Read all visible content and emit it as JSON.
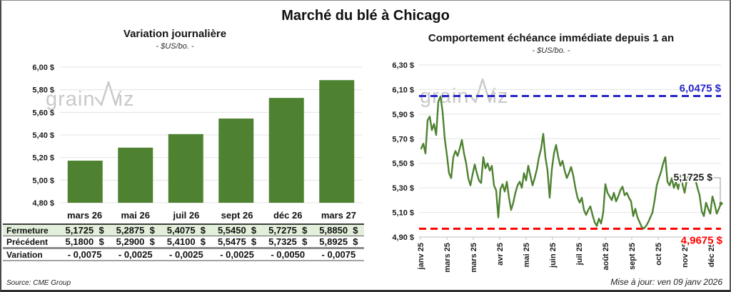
{
  "page": {
    "title": "Marché du blé à Chicago",
    "source_note": "Source: CME Group",
    "update_note": "Mise à jour: ven 09 janv 2026",
    "watermark": {
      "prefix": "grain",
      "suffix": "iz"
    }
  },
  "colors": {
    "green": "#4E8231",
    "row_green": "#E2EFDA",
    "blue": "#2525C8",
    "red": "#FF0000",
    "gridline": "#E3E3E3",
    "axis": "#BDBDBD",
    "leader": "#A9A9A9",
    "watermark": "#C9C9C9",
    "text": "#1A1A1A"
  },
  "chart_data": [
    {
      "type": "bar",
      "title": "Variation journalière",
      "subtitle": "- $US/bo. -",
      "categories": [
        "mars 26",
        "mai 26",
        "juil 26",
        "sept 26",
        "déc 26",
        "mars 27"
      ],
      "values": [
        5.1725,
        5.2875,
        5.4075,
        5.545,
        5.7275,
        5.885
      ],
      "ylim": [
        4.8,
        6.0
      ],
      "ytick_step": 0.2,
      "ytick_labels": [
        "6,00 $",
        "5,80 $",
        "5,60 $",
        "5,40 $",
        "5,20 $",
        "5,00 $",
        "4,80 $"
      ],
      "grid": true,
      "legend": "none"
    },
    {
      "type": "line",
      "title": "Comportement échéance immédiate depuis 1 an",
      "subtitle": "- $US/bo. -",
      "ylim": [
        4.9,
        6.3
      ],
      "ytick_step": 0.2,
      "ytick_labels": [
        "6,30 $",
        "6,10 $",
        "5,90 $",
        "5,70 $",
        "5,50 $",
        "5,30 $",
        "5,10 $",
        "4,90 $"
      ],
      "xtick_labels": [
        "janv 25",
        "mars 25",
        "mars 25",
        "avr 25",
        "mai 25",
        "juin 25",
        "juil 25",
        "août 25",
        "sept 25",
        "oct 25",
        "nov 25",
        "déc 25"
      ],
      "high_line": {
        "value": 6.0475,
        "label": "6,0475 $"
      },
      "low_line": {
        "value": 4.9675,
        "label": "4,9675 $"
      },
      "last_value": 5.1725,
      "last_value_label": "5,1725 $",
      "grid": true,
      "legend": "none",
      "values": [
        5.62,
        5.66,
        5.58,
        5.85,
        5.88,
        5.77,
        5.82,
        5.73,
        6.0,
        6.045,
        5.92,
        5.7,
        5.57,
        5.42,
        5.38,
        5.55,
        5.6,
        5.56,
        5.62,
        5.69,
        5.58,
        5.5,
        5.38,
        5.32,
        5.41,
        5.49,
        5.42,
        5.36,
        5.34,
        5.55,
        5.46,
        5.5,
        5.44,
        5.48,
        5.32,
        5.28,
        5.06,
        5.29,
        5.33,
        5.27,
        5.35,
        5.22,
        5.12,
        5.18,
        5.26,
        5.32,
        5.35,
        5.3,
        5.42,
        5.36,
        5.48,
        5.4,
        5.32,
        5.38,
        5.45,
        5.55,
        5.62,
        5.74,
        5.55,
        5.44,
        5.22,
        5.45,
        5.58,
        5.65,
        5.55,
        5.48,
        5.52,
        5.44,
        5.38,
        5.42,
        5.47,
        5.4,
        5.3,
        5.22,
        5.18,
        5.22,
        5.12,
        5.08,
        5.12,
        5.15,
        5.08,
        5.02,
        4.99,
        5.05,
        5.01,
        5.1,
        5.33,
        5.26,
        5.23,
        5.2,
        5.26,
        5.19,
        5.23,
        5.28,
        5.31,
        5.24,
        5.26,
        5.22,
        5.19,
        5.07,
        5.13,
        5.06,
        5.02,
        4.98,
        4.97,
        4.99,
        5.02,
        5.06,
        5.1,
        5.2,
        5.32,
        5.38,
        5.43,
        5.5,
        5.55,
        5.35,
        5.32,
        5.38,
        5.3,
        5.35,
        5.29,
        5.4,
        5.33,
        5.26,
        5.36,
        5.4,
        5.38,
        5.39,
        5.37,
        5.3,
        5.24,
        5.11,
        5.07,
        5.18,
        5.13,
        5.09,
        5.23,
        5.17,
        5.09,
        5.13,
        5.1725
      ]
    }
  ],
  "table": {
    "header": [
      "mars 26",
      "mai 26",
      "juil 26",
      "sept 26",
      "déc 26",
      "mars 27"
    ],
    "rows": [
      {
        "key": "fermeture",
        "label": "Fermeture",
        "values": [
          "5,1725  $",
          "5,2875  $",
          "5,4075  $",
          "5,5450  $",
          "5,7275  $",
          "5,8850  $"
        ]
      },
      {
        "key": "precedent",
        "label": "Précédent",
        "values": [
          "5,1800  $",
          "5,2900  $",
          "5,4100  $",
          "5,5475  $",
          "5,7325  $",
          "5,8925  $"
        ]
      },
      {
        "key": "variation",
        "label": "Variation",
        "values": [
          "- 0,0075",
          "- 0,0025",
          "- 0,0025",
          "- 0,0025",
          "- 0,0050",
          "- 0,0075"
        ]
      }
    ]
  }
}
